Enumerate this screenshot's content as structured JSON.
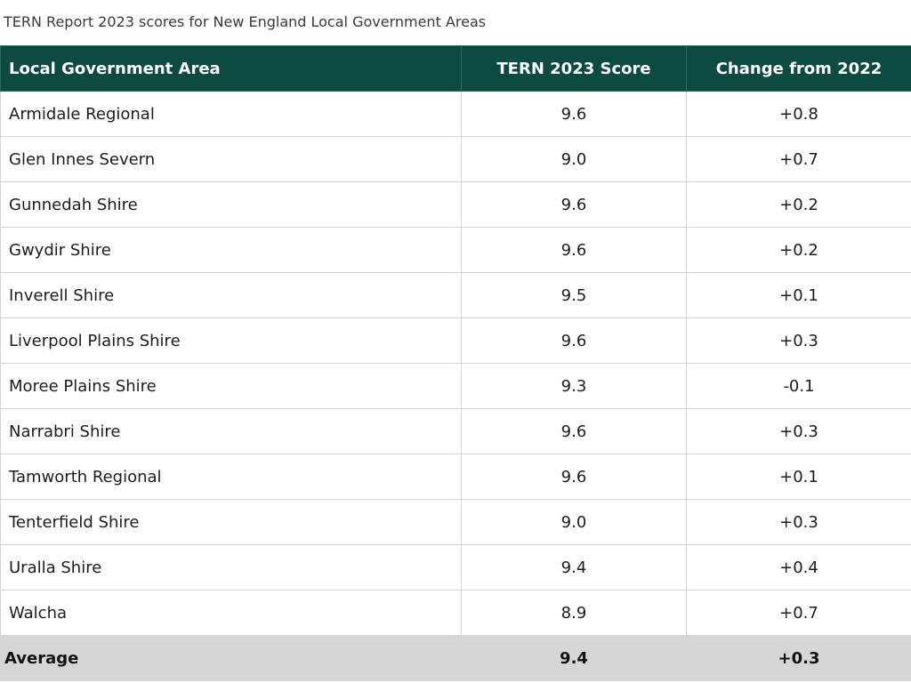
{
  "caption": "TERN Report 2023 scores for New England Local Government Areas",
  "table": {
    "headers": [
      "Local Government Area",
      "TERN 2023 Score",
      "Change from 2022"
    ],
    "rows": [
      [
        "Armidale Regional",
        "9.6",
        "+0.8"
      ],
      [
        "Glen Innes Severn",
        "9.0",
        "+0.7"
      ],
      [
        "Gunnedah Shire",
        "9.6",
        "+0.2"
      ],
      [
        "Gwydir Shire",
        "9.6",
        "+0.2"
      ],
      [
        "Inverell Shire",
        "9.5",
        "+0.1"
      ],
      [
        "Liverpool Plains Shire",
        "9.6",
        "+0.3"
      ],
      [
        "Moree Plains Shire",
        "9.3",
        "-0.1"
      ],
      [
        "Narrabri Shire",
        "9.6",
        "+0.3"
      ],
      [
        "Tamworth Regional",
        "9.6",
        "+0.1"
      ],
      [
        "Tenterfield Shire",
        "9.0",
        "+0.3"
      ],
      [
        "Uralla Shire",
        "9.4",
        "+0.4"
      ],
      [
        "Walcha",
        "8.9",
        "+0.7"
      ]
    ],
    "footer": [
      "Average",
      "9.4",
      "+0.3"
    ]
  },
  "colors": {
    "header_bg": "#0c4a42",
    "footer_bg": "#d6d6d6",
    "border": "#d4d4d4"
  }
}
